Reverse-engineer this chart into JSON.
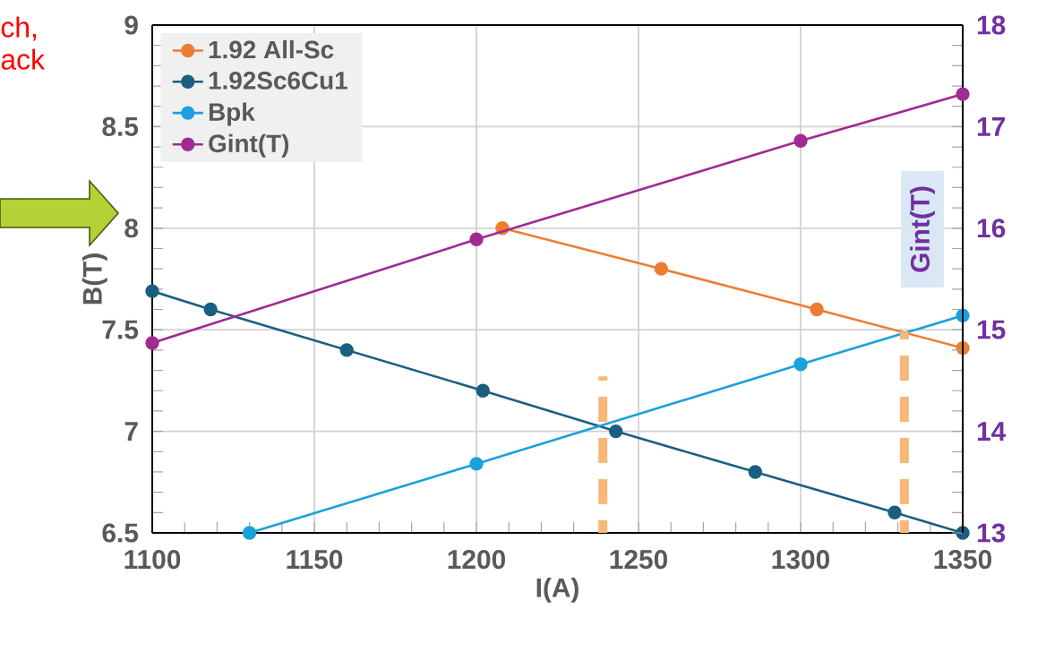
{
  "chart_data": {
    "type": "line",
    "xlabel": "I(A)",
    "ylabel": "B(T)",
    "y2label": "Gint(T)",
    "annotations": [
      "ch,",
      "ack"
    ],
    "xlim": [
      1100,
      1350
    ],
    "xticks": [
      1100,
      1150,
      1200,
      1250,
      1300,
      1350
    ],
    "ylim": [
      6.5,
      9
    ],
    "yticks": [
      6.5,
      7,
      7.5,
      8,
      8.5,
      9
    ],
    "y2lim": [
      13,
      18
    ],
    "y2ticks": [
      13,
      14,
      15,
      16,
      17,
      18
    ],
    "grid": true,
    "legend": "top left",
    "marker": "circle",
    "line_style": "solid",
    "series": [
      {
        "name": "1.92 All-Sc",
        "color": "#ed7d31",
        "x": [
          1208,
          1257,
          1305,
          1350
        ],
        "values": [
          8.0,
          7.8,
          7.6,
          7.41
        ]
      },
      {
        "name": "1.92Sc6Cu1",
        "color": "#1b5f80",
        "x": [
          1100,
          1118,
          1160,
          1202,
          1243,
          1286,
          1329,
          1350
        ],
        "values": [
          7.69,
          7.6,
          7.4,
          7.2,
          7.0,
          6.8,
          6.6,
          6.5
        ]
      },
      {
        "name": "Bpk",
        "color": "#1ba1db",
        "x": [
          1130,
          1200,
          1300,
          1350
        ],
        "values": [
          6.5,
          6.84,
          7.33,
          7.57
        ]
      },
      {
        "name": "Gint(T)",
        "color": "#a02b93",
        "axis": "y2",
        "x": [
          1100,
          1200,
          1300,
          1350
        ],
        "values": [
          14.87,
          15.89,
          16.86,
          17.32
        ]
      },
      {
        "color": "#f8b878",
        "x": [
          1239,
          1239
        ],
        "values": [
          6.5,
          7.27
        ],
        "line_style": "dashed",
        "marker": "none"
      },
      {
        "color": "#f8b878",
        "x": [
          1332,
          1332
        ],
        "values": [
          6.5,
          7.49
        ],
        "line_style": "dashed",
        "marker": "none"
      }
    ]
  }
}
